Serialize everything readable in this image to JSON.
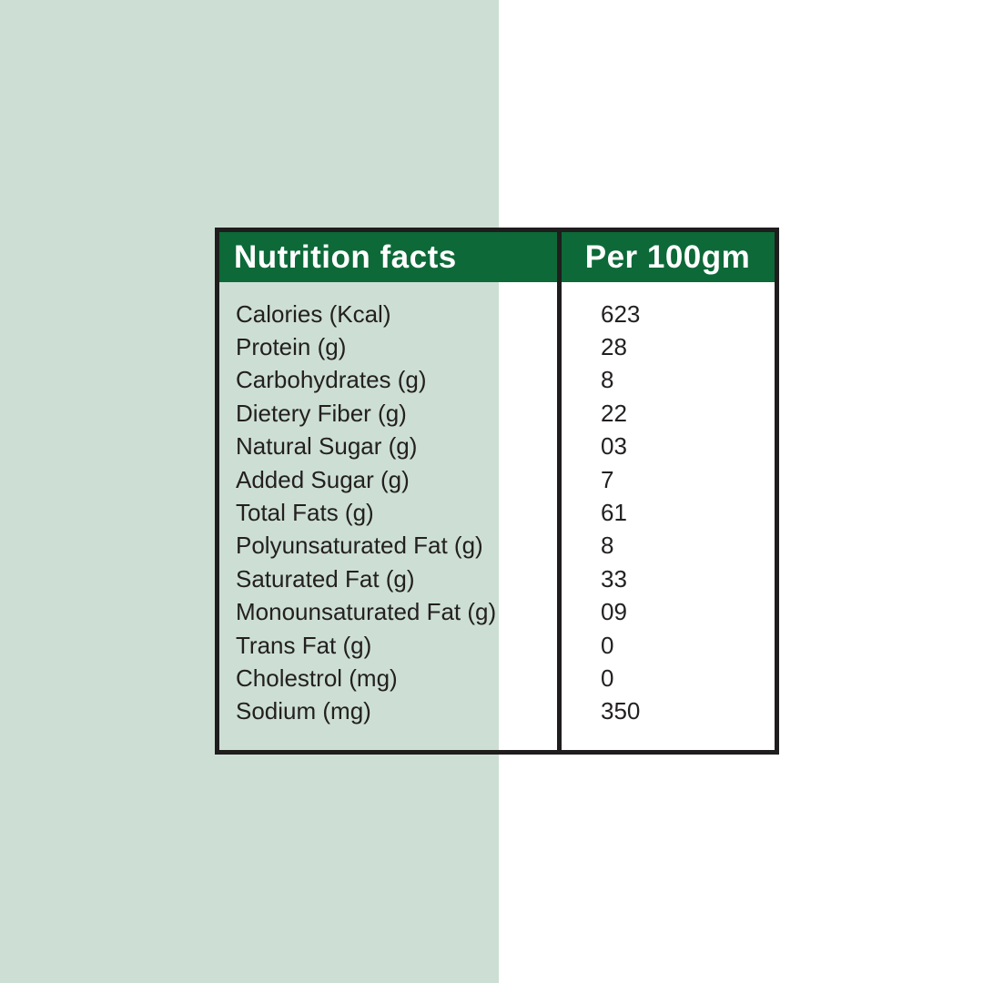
{
  "page": {
    "background_color": "#ffffff",
    "left_panel_color": "#cddfd4"
  },
  "table": {
    "border_color": "#1f1d1d",
    "header": {
      "left_label": "Nutrition facts",
      "right_label": "Per 100gm",
      "background_color": "#0d6938",
      "text_color": "#ffffff"
    },
    "rows": [
      {
        "label": "Calories (Kcal)",
        "value": "623"
      },
      {
        "label": "Protein (g)",
        "value": "28"
      },
      {
        "label": "Carbohydrates (g)",
        "value": "8"
      },
      {
        "label": "Dietery Fiber (g)",
        "value": "22"
      },
      {
        "label": "Natural Sugar (g)",
        "value": "03"
      },
      {
        "label": "Added Sugar (g)",
        "value": "7"
      },
      {
        "label": "Total Fats (g)",
        "value": "61"
      },
      {
        "label": "Polyunsaturated Fat (g)",
        "value": "8"
      },
      {
        "label": "Saturated Fat (g)",
        "value": "33"
      },
      {
        "label": "Monounsaturated Fat (g)",
        "value": "09"
      },
      {
        "label": "Trans Fat (g)",
        "value": "0"
      },
      {
        "label": "Cholestrol (mg)",
        "value": "0"
      },
      {
        "label": "Sodium (mg)",
        "value": "350"
      }
    ]
  }
}
